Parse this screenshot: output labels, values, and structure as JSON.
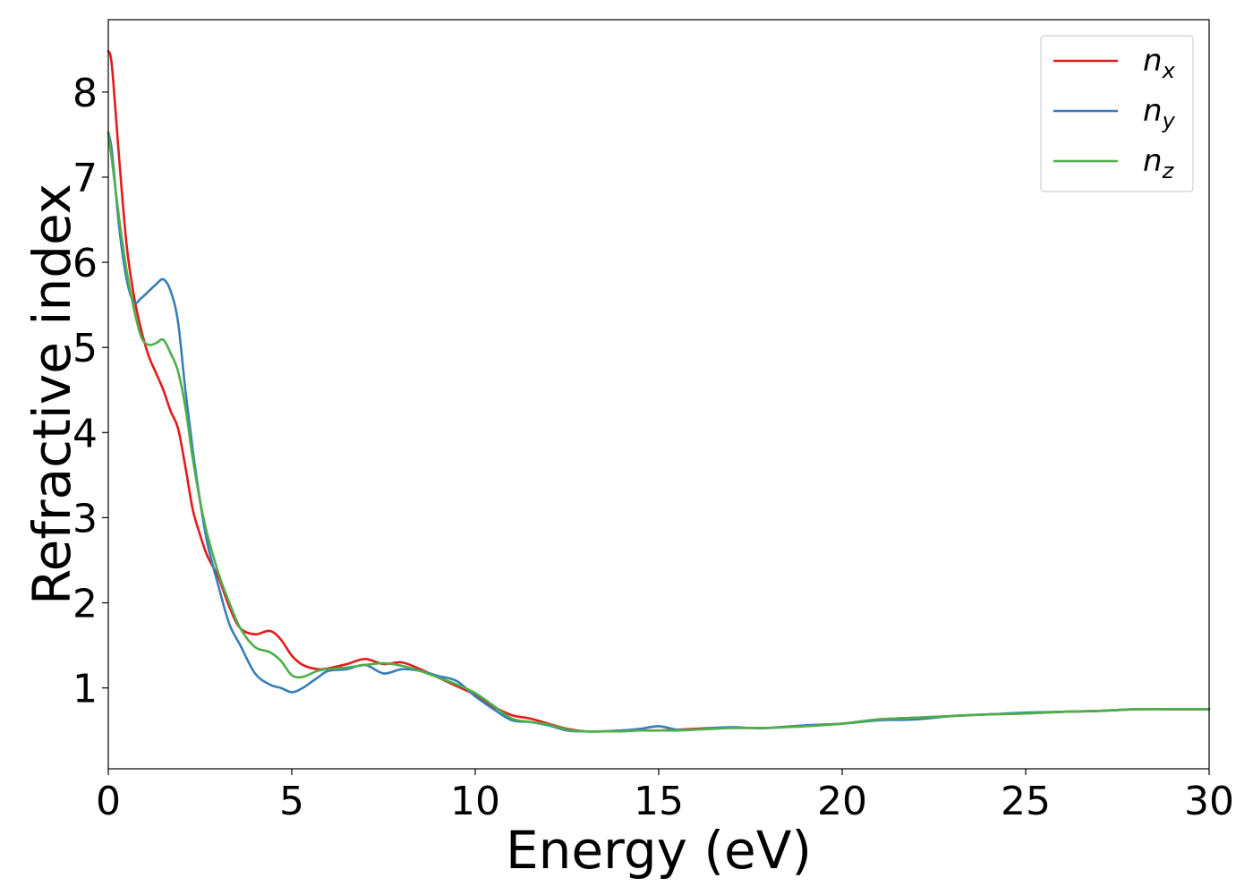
{
  "chart_data": {
    "type": "line",
    "title": "",
    "xlabel": "Energy (eV)",
    "ylabel": "Refractive index",
    "xlim": [
      0,
      30
    ],
    "ylim": [
      0.05,
      8.85
    ],
    "x_ticks": [
      0,
      5,
      10,
      15,
      20,
      25,
      30
    ],
    "y_ticks": [
      1,
      2,
      3,
      4,
      5,
      6,
      7,
      8
    ],
    "grid": false,
    "legend_position": "top-right",
    "series": [
      {
        "name": "n",
        "subscript": "x",
        "color": "#e41a1c",
        "x": [
          0,
          0.1,
          0.3,
          0.5,
          0.7,
          0.9,
          1.1,
          1.3,
          1.5,
          1.7,
          1.9,
          2.1,
          2.3,
          2.5,
          2.7,
          3.0,
          3.3,
          3.6,
          4.0,
          4.4,
          4.7,
          5.0,
          5.3,
          5.7,
          6.0,
          6.5,
          7.0,
          7.5,
          8.0,
          8.5,
          9.0,
          9.5,
          10.0,
          10.5,
          11.0,
          11.5,
          12.0,
          12.5,
          13.0,
          13.5,
          14.0,
          14.5,
          15.0,
          15.5,
          16.0,
          16.5,
          17.0,
          17.5,
          18.0,
          19.0,
          20.0,
          21.0,
          22.0,
          23.0,
          24.0,
          25.0,
          26.0,
          27.0,
          28.0,
          29.0,
          30.0
        ],
        "values": [
          8.48,
          8.3,
          7.2,
          6.2,
          5.6,
          5.2,
          4.9,
          4.7,
          4.5,
          4.25,
          4.05,
          3.6,
          3.1,
          2.8,
          2.55,
          2.3,
          1.95,
          1.7,
          1.63,
          1.67,
          1.57,
          1.38,
          1.27,
          1.22,
          1.23,
          1.28,
          1.34,
          1.28,
          1.3,
          1.22,
          1.12,
          1.02,
          0.92,
          0.78,
          0.68,
          0.64,
          0.58,
          0.52,
          0.49,
          0.49,
          0.5,
          0.5,
          0.5,
          0.51,
          0.52,
          0.53,
          0.53,
          0.53,
          0.53,
          0.56,
          0.58,
          0.63,
          0.65,
          0.67,
          0.69,
          0.7,
          0.72,
          0.73,
          0.75,
          0.75,
          0.75
        ]
      },
      {
        "name": "n",
        "subscript": "y",
        "color": "#377eb8",
        "x": [
          0,
          0.1,
          0.3,
          0.5,
          0.7,
          0.9,
          1.1,
          1.3,
          1.5,
          1.7,
          1.9,
          2.1,
          2.3,
          2.5,
          2.7,
          3.0,
          3.3,
          3.6,
          4.0,
          4.4,
          4.7,
          5.0,
          5.3,
          5.7,
          6.0,
          6.5,
          7.0,
          7.5,
          8.0,
          8.5,
          9.0,
          9.5,
          10.0,
          10.5,
          11.0,
          11.5,
          12.0,
          12.5,
          13.0,
          13.5,
          14.0,
          14.5,
          15.0,
          15.5,
          16.0,
          16.5,
          17.0,
          17.5,
          18.0,
          19.0,
          20.0,
          21.0,
          22.0,
          23.0,
          24.0,
          25.0,
          26.0,
          27.0,
          28.0,
          29.0,
          30.0
        ],
        "values": [
          7.52,
          7.3,
          6.4,
          5.8,
          5.53,
          5.58,
          5.66,
          5.74,
          5.8,
          5.66,
          5.3,
          4.5,
          3.8,
          3.2,
          2.7,
          2.2,
          1.75,
          1.5,
          1.17,
          1.04,
          1.0,
          0.95,
          1.0,
          1.12,
          1.2,
          1.22,
          1.27,
          1.17,
          1.22,
          1.2,
          1.14,
          1.08,
          0.9,
          0.75,
          0.62,
          0.6,
          0.56,
          0.5,
          0.49,
          0.49,
          0.5,
          0.52,
          0.55,
          0.51,
          0.51,
          0.53,
          0.54,
          0.53,
          0.53,
          0.56,
          0.58,
          0.62,
          0.63,
          0.67,
          0.69,
          0.71,
          0.72,
          0.73,
          0.75,
          0.75,
          0.75
        ]
      },
      {
        "name": "n",
        "subscript": "z",
        "color": "#4daf4a",
        "x": [
          0,
          0.1,
          0.3,
          0.5,
          0.7,
          0.9,
          1.1,
          1.3,
          1.5,
          1.7,
          1.9,
          2.1,
          2.3,
          2.5,
          2.7,
          3.0,
          3.3,
          3.6,
          4.0,
          4.4,
          4.7,
          5.0,
          5.3,
          5.7,
          6.0,
          6.5,
          7.0,
          7.5,
          8.0,
          8.5,
          9.0,
          9.5,
          10.0,
          10.5,
          11.0,
          11.5,
          12.0,
          12.5,
          13.0,
          13.5,
          14.0,
          14.5,
          15.0,
          15.5,
          16.0,
          16.5,
          17.0,
          17.5,
          18.0,
          19.0,
          20.0,
          21.0,
          22.0,
          23.0,
          24.0,
          25.0,
          26.0,
          27.0,
          28.0,
          29.0,
          30.0
        ],
        "values": [
          7.53,
          7.2,
          6.5,
          5.9,
          5.45,
          5.12,
          5.03,
          5.05,
          5.09,
          4.93,
          4.72,
          4.3,
          3.7,
          3.2,
          2.8,
          2.35,
          2.0,
          1.7,
          1.48,
          1.42,
          1.32,
          1.15,
          1.13,
          1.2,
          1.22,
          1.24,
          1.27,
          1.29,
          1.26,
          1.2,
          1.12,
          1.04,
          0.94,
          0.79,
          0.64,
          0.6,
          0.57,
          0.51,
          0.49,
          0.49,
          0.49,
          0.5,
          0.5,
          0.5,
          0.51,
          0.52,
          0.53,
          0.53,
          0.53,
          0.55,
          0.58,
          0.63,
          0.65,
          0.67,
          0.69,
          0.7,
          0.72,
          0.73,
          0.75,
          0.75,
          0.75
        ]
      }
    ]
  }
}
